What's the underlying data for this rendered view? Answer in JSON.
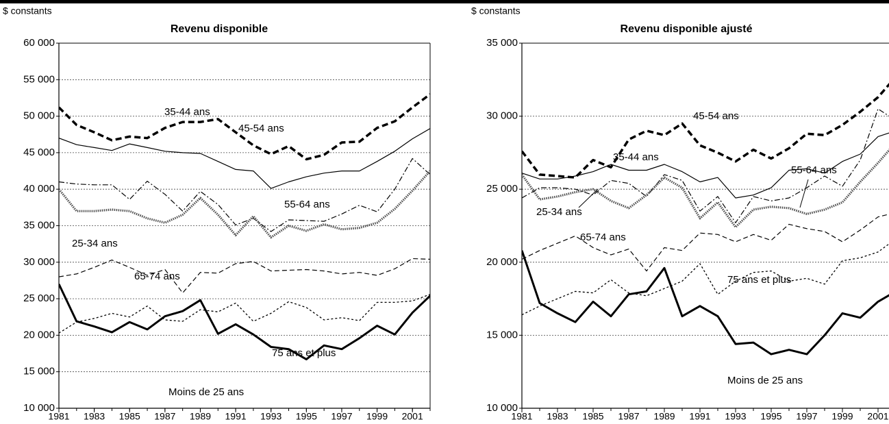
{
  "chart_data": [
    {
      "type": "line",
      "title": "Revenu disponible",
      "ylabel": "$ constants",
      "x": [
        1981,
        1982,
        1983,
        1984,
        1985,
        1986,
        1987,
        1988,
        1989,
        1990,
        1991,
        1992,
        1993,
        1994,
        1995,
        1996,
        1997,
        1998,
        1999,
        2000,
        2001,
        2002
      ],
      "xlim": [
        1981,
        2002
      ],
      "xticks": [
        1981,
        1983,
        1985,
        1987,
        1989,
        1991,
        1993,
        1995,
        1997,
        1999,
        2001
      ],
      "ylim": [
        10000,
        60000
      ],
      "yticks": [
        {
          "value": 10000,
          "label": "10 000"
        },
        {
          "value": 15000,
          "label": "15 000"
        },
        {
          "value": 20000,
          "label": "20 000"
        },
        {
          "value": 25000,
          "label": "25 000"
        },
        {
          "value": 30000,
          "label": "30 000"
        },
        {
          "value": 35000,
          "label": "35 000"
        },
        {
          "value": 40000,
          "label": "40 000"
        },
        {
          "value": 45000,
          "label": "45 000"
        },
        {
          "value": 50000,
          "label": "50 000"
        },
        {
          "value": 55000,
          "label": "55 000"
        },
        {
          "value": 60000,
          "label": "60 000"
        }
      ],
      "grid": true,
      "series": [
        {
          "name": "45-54 ans",
          "color": "#000000",
          "linestyle": "dashed",
          "weight": "bold",
          "values": [
            51200,
            48800,
            47800,
            46700,
            47200,
            47000,
            48400,
            49200,
            49200,
            49600,
            47800,
            46000,
            44800,
            45900,
            44100,
            44700,
            46400,
            46500,
            48400,
            49300,
            51200,
            53000
          ]
        },
        {
          "name": "35-44 ans",
          "color": "#000000",
          "linestyle": "solid",
          "weight": "normal",
          "values": [
            47000,
            46100,
            45700,
            45300,
            46200,
            45700,
            45200,
            45000,
            44900,
            43800,
            42700,
            42500,
            40100,
            41000,
            41700,
            42200,
            42500,
            42500,
            43800,
            45200,
            46900,
            48300
          ]
        },
        {
          "name": "55-64 ans",
          "color": "#000000",
          "linestyle": "dashdot",
          "weight": "normal",
          "values": [
            41000,
            40700,
            40600,
            40600,
            38600,
            41100,
            39300,
            37000,
            39700,
            37900,
            35100,
            36000,
            34200,
            35800,
            35700,
            35600,
            36600,
            37800,
            36900,
            40000,
            44200,
            42000
          ]
        },
        {
          "name": "25-34 ans",
          "color": "#555555",
          "linestyle": "dotted",
          "weight": "bold",
          "values": [
            40000,
            37000,
            37000,
            37200,
            37000,
            36000,
            35400,
            36500,
            38800,
            36500,
            33700,
            36300,
            33400,
            35000,
            34300,
            35200,
            34500,
            34700,
            35400,
            37300,
            39800,
            42500
          ]
        },
        {
          "name": "65-74 ans",
          "color": "#000000",
          "linestyle": "dashed",
          "weight": "normal",
          "values": [
            28000,
            28400,
            29300,
            30300,
            29300,
            28200,
            29000,
            25800,
            28600,
            28500,
            29800,
            30100,
            28800,
            28900,
            29000,
            28800,
            28400,
            28600,
            28200,
            29100,
            30500,
            30400
          ]
        },
        {
          "name": "75 ans et plus",
          "color": "#000000",
          "linestyle": "dotted",
          "weight": "normal",
          "values": [
            20300,
            21800,
            22300,
            23000,
            22500,
            24000,
            22100,
            21900,
            23500,
            23200,
            24400,
            21900,
            23000,
            24600,
            23800,
            22100,
            22400,
            22000,
            24500,
            24500,
            24700,
            25600
          ]
        },
        {
          "name": "Moins de 25 ans",
          "color": "#000000",
          "linestyle": "solid",
          "weight": "bold",
          "values": [
            27000,
            21900,
            21200,
            20400,
            21800,
            20800,
            22600,
            23300,
            24800,
            20200,
            21500,
            20100,
            18400,
            18100,
            16700,
            18600,
            18100,
            19600,
            21300,
            20100,
            23100,
            25400
          ]
        }
      ]
    },
    {
      "type": "line",
      "title": "Revenu disponible ajusté",
      "ylabel": "$ constants",
      "x": [
        1981,
        1982,
        1983,
        1984,
        1985,
        1986,
        1987,
        1988,
        1989,
        1990,
        1991,
        1992,
        1993,
        1994,
        1995,
        1996,
        1997,
        1998,
        1999,
        2000,
        2001,
        2002
      ],
      "xlim": [
        1981,
        2002
      ],
      "xticks": [
        1981,
        1983,
        1985,
        1987,
        1989,
        1991,
        1993,
        1995,
        1997,
        1999,
        2001
      ],
      "ylim": [
        10000,
        35000
      ],
      "yticks": [
        {
          "value": 10000,
          "label": "10 000"
        },
        {
          "value": 15000,
          "label": "15 000"
        },
        {
          "value": 20000,
          "label": "20 000"
        },
        {
          "value": 25000,
          "label": "25 000"
        },
        {
          "value": 30000,
          "label": "30 000"
        },
        {
          "value": 35000,
          "label": "35 000"
        }
      ],
      "grid": true,
      "series": [
        {
          "name": "45-54 ans",
          "color": "#000000",
          "linestyle": "dashed",
          "weight": "bold",
          "values": [
            27600,
            26000,
            25900,
            25800,
            27000,
            26500,
            28400,
            29000,
            28700,
            29500,
            28000,
            27500,
            26900,
            27700,
            27100,
            27800,
            28800,
            28700,
            29400,
            30300,
            31300,
            32700
          ]
        },
        {
          "name": "35-44 ans",
          "color": "#000000",
          "linestyle": "solid",
          "weight": "normal",
          "values": [
            26100,
            25700,
            25700,
            25900,
            26200,
            26700,
            26300,
            26300,
            26700,
            26200,
            25500,
            25800,
            24400,
            24600,
            25100,
            26300,
            26400,
            26100,
            26900,
            27400,
            28600,
            29000
          ]
        },
        {
          "name": "55-64 ans",
          "color": "#000000",
          "linestyle": "dashdot",
          "weight": "normal",
          "values": [
            24400,
            25100,
            25100,
            25000,
            24600,
            25600,
            25400,
            24500,
            26000,
            25600,
            23500,
            24500,
            22700,
            24500,
            24200,
            24400,
            25100,
            25900,
            25200,
            27000,
            30500,
            29700
          ]
        },
        {
          "name": "25-34 ans",
          "color": "#555555",
          "linestyle": "dotted",
          "weight": "bold",
          "values": [
            26000,
            24300,
            24500,
            24800,
            25000,
            24200,
            23700,
            24600,
            25800,
            25100,
            23000,
            24100,
            22400,
            23600,
            23800,
            23700,
            23300,
            23600,
            24100,
            25500,
            26800,
            28200
          ]
        },
        {
          "name": "65-74 ans",
          "color": "#000000",
          "linestyle": "dashed",
          "weight": "normal",
          "values": [
            20200,
            20800,
            21300,
            21800,
            21000,
            20500,
            20900,
            19400,
            21000,
            20800,
            22000,
            21900,
            21400,
            21900,
            21500,
            22600,
            22300,
            22100,
            21400,
            22200,
            23100,
            23400
          ]
        },
        {
          "name": "75 ans et plus",
          "color": "#000000",
          "linestyle": "dotted",
          "weight": "normal",
          "values": [
            16400,
            17000,
            17500,
            18000,
            17900,
            18800,
            17900,
            17700,
            18200,
            18700,
            19900,
            17800,
            18700,
            19300,
            19400,
            18700,
            18900,
            18500,
            20100,
            20300,
            20700,
            21600
          ]
        },
        {
          "name": "Moins de 25 ans",
          "color": "#000000",
          "linestyle": "solid",
          "weight": "bold",
          "values": [
            20800,
            17200,
            16500,
            15900,
            17300,
            16300,
            17800,
            18000,
            19600,
            16300,
            17000,
            16300,
            14400,
            14500,
            13700,
            14000,
            13700,
            15000,
            16500,
            16200,
            17300,
            18000
          ]
        }
      ]
    }
  ]
}
